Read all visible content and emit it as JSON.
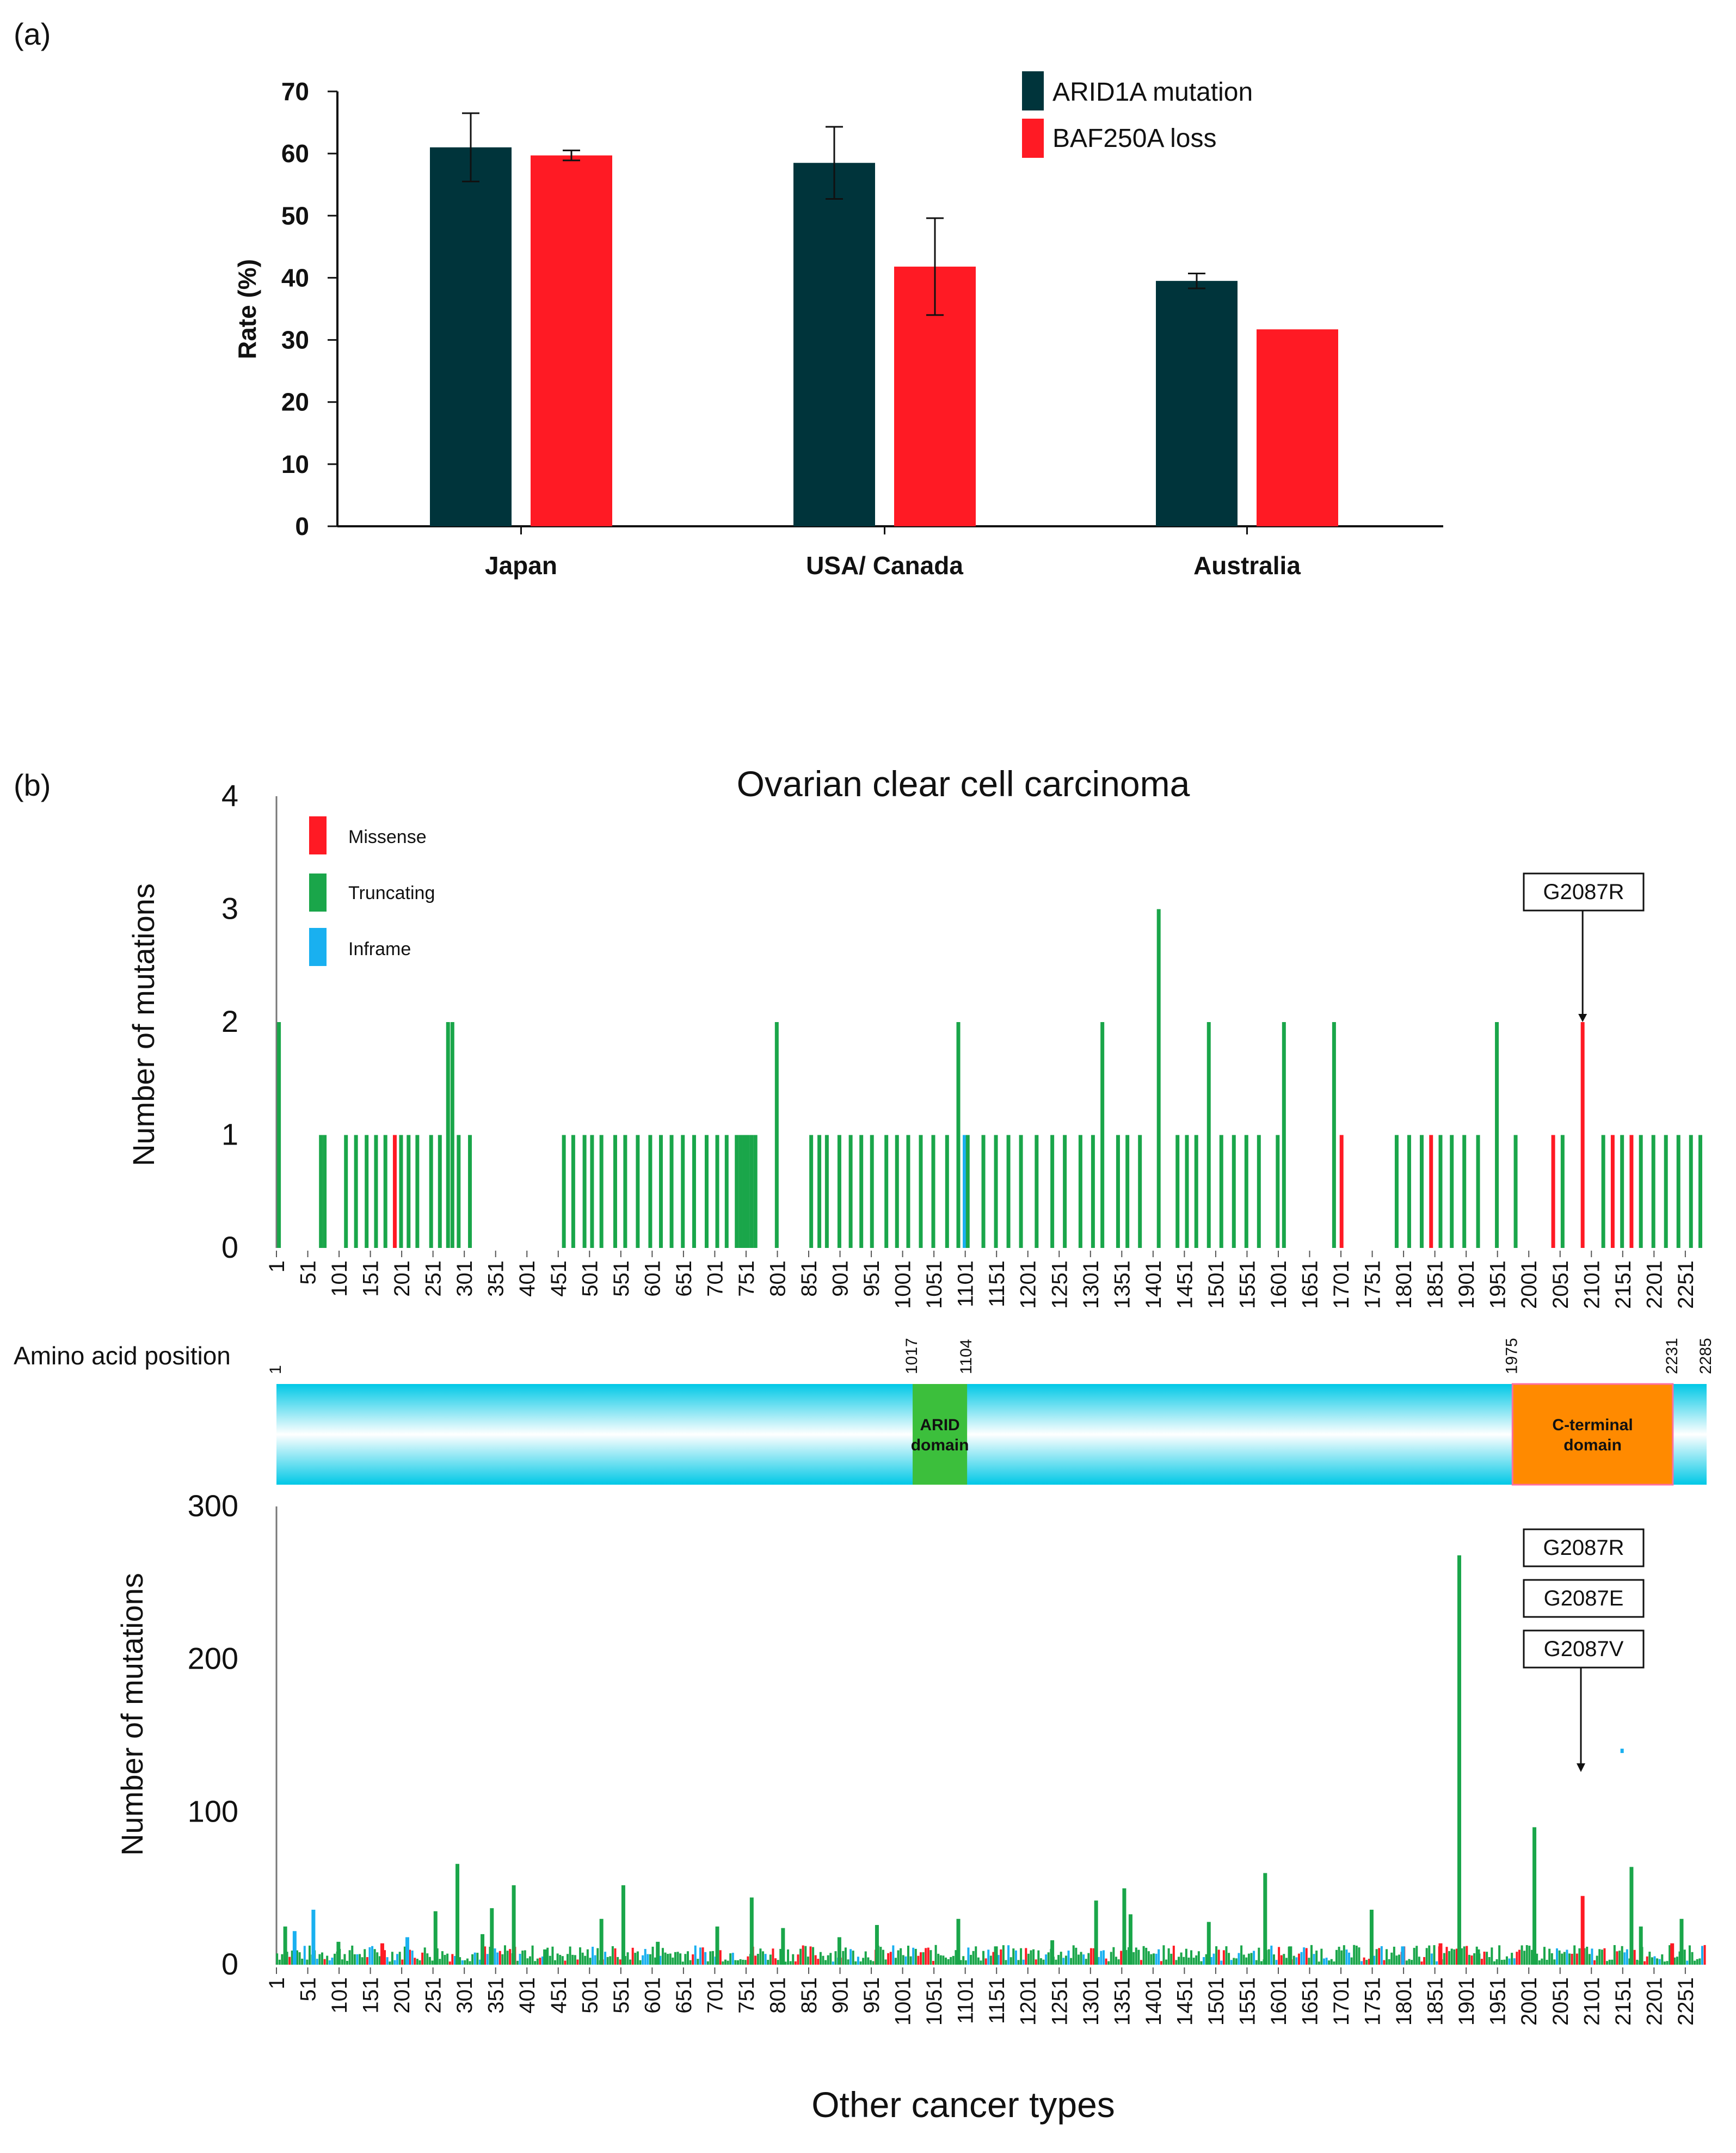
{
  "chart_data": [
    {
      "id": "a",
      "type": "bar",
      "panel_label": "(a)",
      "ylabel": "Rate (%)",
      "ylim": [
        0,
        70
      ],
      "yticks": [
        0,
        10,
        20,
        30,
        40,
        50,
        60,
        70
      ],
      "categories": [
        "Japan",
        "USA/ Canada",
        "Australia"
      ],
      "series": [
        {
          "name": "ARID1A mutation",
          "color": "#00343b",
          "values": [
            61,
            58.5,
            39.5
          ],
          "errors": [
            5.5,
            5.8,
            1.2
          ]
        },
        {
          "name": "BAF250A loss",
          "color": "#ff1a24",
          "values": [
            59.7,
            41.8,
            31.7
          ],
          "errors": [
            0.8,
            7.8,
            null
          ]
        }
      ]
    },
    {
      "id": "b1",
      "type": "bar",
      "panel_label": "(b)",
      "title": "Ovarian clear cell carcinoma",
      "ylabel": "Number of mutations",
      "ylim": [
        0,
        4
      ],
      "yticks": [
        0,
        1,
        2,
        3,
        4
      ],
      "xlim": [
        1,
        2285
      ],
      "xticks": [
        "1",
        "51",
        "101",
        "151",
        "201",
        "251",
        "301",
        "351",
        "401",
        "451",
        "501",
        "551",
        "601",
        "651",
        "701",
        "751",
        "801",
        "851",
        "901",
        "951",
        "1001",
        "1051",
        "1101",
        "1151",
        "1201",
        "1251",
        "1301",
        "1351",
        "1401",
        "1451",
        "1501",
        "1551",
        "1601",
        "1651",
        "1701",
        "1751",
        "1801",
        "1851",
        "1901",
        "1951",
        "2001",
        "2051",
        "2101",
        "2151",
        "2201",
        "2251"
      ],
      "legend": [
        {
          "label": "Missense",
          "color": "#ff1a24"
        },
        {
          "label": "Truncating",
          "color": "#1aa64a"
        },
        {
          "label": "Inframe",
          "color": "#19b0f0"
        }
      ],
      "annotation": {
        "label": "G2087R",
        "position": 2087,
        "value": 2
      },
      "mutations": [
        {
          "pos": 5,
          "count": 2,
          "type": "Truncating"
        },
        {
          "pos": 72,
          "count": 1,
          "type": "Truncating"
        },
        {
          "pos": 78,
          "count": 1,
          "type": "Truncating"
        },
        {
          "pos": 112,
          "count": 1,
          "type": "Truncating"
        },
        {
          "pos": 128,
          "count": 1,
          "type": "Truncating"
        },
        {
          "pos": 145,
          "count": 1,
          "type": "Truncating"
        },
        {
          "pos": 160,
          "count": 1,
          "type": "Truncating"
        },
        {
          "pos": 175,
          "count": 1,
          "type": "Truncating"
        },
        {
          "pos": 190,
          "count": 1,
          "type": "Missense"
        },
        {
          "pos": 200,
          "count": 1,
          "type": "Truncating"
        },
        {
          "pos": 212,
          "count": 1,
          "type": "Truncating"
        },
        {
          "pos": 226,
          "count": 1,
          "type": "Truncating"
        },
        {
          "pos": 248,
          "count": 1,
          "type": "Truncating"
        },
        {
          "pos": 262,
          "count": 1,
          "type": "Truncating"
        },
        {
          "pos": 275,
          "count": 2,
          "type": "Truncating"
        },
        {
          "pos": 282,
          "count": 2,
          "type": "Truncating"
        },
        {
          "pos": 292,
          "count": 1,
          "type": "Truncating"
        },
        {
          "pos": 310,
          "count": 1,
          "type": "Truncating"
        },
        {
          "pos": 460,
          "count": 1,
          "type": "Truncating"
        },
        {
          "pos": 475,
          "count": 1,
          "type": "Truncating"
        },
        {
          "pos": 493,
          "count": 1,
          "type": "Truncating"
        },
        {
          "pos": 505,
          "count": 1,
          "type": "Truncating"
        },
        {
          "pos": 520,
          "count": 1,
          "type": "Truncating"
        },
        {
          "pos": 542,
          "count": 1,
          "type": "Truncating"
        },
        {
          "pos": 558,
          "count": 1,
          "type": "Truncating"
        },
        {
          "pos": 578,
          "count": 1,
          "type": "Truncating"
        },
        {
          "pos": 598,
          "count": 1,
          "type": "Truncating"
        },
        {
          "pos": 615,
          "count": 1,
          "type": "Truncating"
        },
        {
          "pos": 632,
          "count": 1,
          "type": "Truncating"
        },
        {
          "pos": 650,
          "count": 1,
          "type": "Truncating"
        },
        {
          "pos": 668,
          "count": 1,
          "type": "Truncating"
        },
        {
          "pos": 688,
          "count": 1,
          "type": "Truncating"
        },
        {
          "pos": 705,
          "count": 1,
          "type": "Truncating"
        },
        {
          "pos": 720,
          "count": 1,
          "type": "Truncating"
        },
        {
          "pos": 736,
          "count": 1,
          "type": "Truncating"
        },
        {
          "pos": 742,
          "count": 1,
          "type": "Truncating"
        },
        {
          "pos": 748,
          "count": 1,
          "type": "Truncating"
        },
        {
          "pos": 754,
          "count": 1,
          "type": "Truncating"
        },
        {
          "pos": 760,
          "count": 1,
          "type": "Truncating"
        },
        {
          "pos": 766,
          "count": 1,
          "type": "Truncating"
        },
        {
          "pos": 800,
          "count": 2,
          "type": "Truncating"
        },
        {
          "pos": 855,
          "count": 1,
          "type": "Truncating"
        },
        {
          "pos": 868,
          "count": 1,
          "type": "Truncating"
        },
        {
          "pos": 880,
          "count": 1,
          "type": "Truncating"
        },
        {
          "pos": 900,
          "count": 1,
          "type": "Truncating"
        },
        {
          "pos": 918,
          "count": 1,
          "type": "Truncating"
        },
        {
          "pos": 935,
          "count": 1,
          "type": "Truncating"
        },
        {
          "pos": 952,
          "count": 1,
          "type": "Truncating"
        },
        {
          "pos": 975,
          "count": 1,
          "type": "Truncating"
        },
        {
          "pos": 992,
          "count": 1,
          "type": "Truncating"
        },
        {
          "pos": 1010,
          "count": 1,
          "type": "Truncating"
        },
        {
          "pos": 1030,
          "count": 1,
          "type": "Truncating"
        },
        {
          "pos": 1050,
          "count": 1,
          "type": "Truncating"
        },
        {
          "pos": 1072,
          "count": 1,
          "type": "Truncating"
        },
        {
          "pos": 1090,
          "count": 2,
          "type": "Truncating"
        },
        {
          "pos": 1100,
          "count": 1,
          "type": "Inframe"
        },
        {
          "pos": 1105,
          "count": 1,
          "type": "Truncating"
        },
        {
          "pos": 1130,
          "count": 1,
          "type": "Truncating"
        },
        {
          "pos": 1150,
          "count": 1,
          "type": "Truncating"
        },
        {
          "pos": 1170,
          "count": 1,
          "type": "Truncating"
        },
        {
          "pos": 1190,
          "count": 1,
          "type": "Truncating"
        },
        {
          "pos": 1215,
          "count": 1,
          "type": "Truncating"
        },
        {
          "pos": 1240,
          "count": 1,
          "type": "Truncating"
        },
        {
          "pos": 1260,
          "count": 1,
          "type": "Truncating"
        },
        {
          "pos": 1285,
          "count": 1,
          "type": "Truncating"
        },
        {
          "pos": 1305,
          "count": 1,
          "type": "Truncating"
        },
        {
          "pos": 1320,
          "count": 2,
          "type": "Truncating"
        },
        {
          "pos": 1345,
          "count": 1,
          "type": "Truncating"
        },
        {
          "pos": 1360,
          "count": 1,
          "type": "Truncating"
        },
        {
          "pos": 1380,
          "count": 1,
          "type": "Truncating"
        },
        {
          "pos": 1410,
          "count": 3,
          "type": "Truncating"
        },
        {
          "pos": 1440,
          "count": 1,
          "type": "Truncating"
        },
        {
          "pos": 1455,
          "count": 1,
          "type": "Truncating"
        },
        {
          "pos": 1470,
          "count": 1,
          "type": "Truncating"
        },
        {
          "pos": 1490,
          "count": 2,
          "type": "Truncating"
        },
        {
          "pos": 1510,
          "count": 1,
          "type": "Truncating"
        },
        {
          "pos": 1530,
          "count": 1,
          "type": "Truncating"
        },
        {
          "pos": 1550,
          "count": 1,
          "type": "Truncating"
        },
        {
          "pos": 1570,
          "count": 1,
          "type": "Truncating"
        },
        {
          "pos": 1600,
          "count": 1,
          "type": "Truncating"
        },
        {
          "pos": 1610,
          "count": 2,
          "type": "Truncating"
        },
        {
          "pos": 1690,
          "count": 2,
          "type": "Truncating"
        },
        {
          "pos": 1702,
          "count": 1,
          "type": "Missense"
        },
        {
          "pos": 1790,
          "count": 1,
          "type": "Truncating"
        },
        {
          "pos": 1810,
          "count": 1,
          "type": "Truncating"
        },
        {
          "pos": 1830,
          "count": 1,
          "type": "Truncating"
        },
        {
          "pos": 1845,
          "count": 1,
          "type": "Missense"
        },
        {
          "pos": 1860,
          "count": 1,
          "type": "Truncating"
        },
        {
          "pos": 1878,
          "count": 1,
          "type": "Truncating"
        },
        {
          "pos": 1898,
          "count": 1,
          "type": "Truncating"
        },
        {
          "pos": 1920,
          "count": 1,
          "type": "Truncating"
        },
        {
          "pos": 1950,
          "count": 2,
          "type": "Truncating"
        },
        {
          "pos": 1980,
          "count": 1,
          "type": "Truncating"
        },
        {
          "pos": 2040,
          "count": 1,
          "type": "Missense"
        },
        {
          "pos": 2055,
          "count": 1,
          "type": "Truncating"
        },
        {
          "pos": 2087,
          "count": 2,
          "type": "Missense"
        },
        {
          "pos": 2120,
          "count": 1,
          "type": "Truncating"
        },
        {
          "pos": 2135,
          "count": 1,
          "type": "Missense"
        },
        {
          "pos": 2150,
          "count": 1,
          "type": "Truncating"
        },
        {
          "pos": 2165,
          "count": 1,
          "type": "Missense"
        },
        {
          "pos": 2180,
          "count": 1,
          "type": "Truncating"
        },
        {
          "pos": 2200,
          "count": 1,
          "type": "Truncating"
        },
        {
          "pos": 2220,
          "count": 1,
          "type": "Truncating"
        },
        {
          "pos": 2240,
          "count": 1,
          "type": "Truncating"
        },
        {
          "pos": 2260,
          "count": 1,
          "type": "Truncating"
        },
        {
          "pos": 2275,
          "count": 1,
          "type": "Truncating"
        }
      ]
    },
    {
      "id": "b2",
      "type": "bar",
      "title": "Other cancer types",
      "ylabel": "Number of mutations",
      "ylim": [
        0,
        300
      ],
      "yticks": [
        0,
        100,
        200,
        300
      ],
      "xlim": [
        1,
        2285
      ],
      "xticks": [
        "1",
        "51",
        "101",
        "151",
        "201",
        "251",
        "301",
        "351",
        "401",
        "451",
        "501",
        "551",
        "601",
        "651",
        "701",
        "751",
        "801",
        "851",
        "901",
        "951",
        "1001",
        "1051",
        "1101",
        "1151",
        "1201",
        "1251",
        "1301",
        "1351",
        "1401",
        "1451",
        "1501",
        "1551",
        "1601",
        "1651",
        "1701",
        "1751",
        "1801",
        "1851",
        "1901",
        "1951",
        "2001",
        "2051",
        "2101",
        "2151",
        "2201",
        "2251"
      ],
      "annotations": [
        "G2087R",
        "G2087E",
        "G2087V"
      ],
      "annotation_position": 2087,
      "peaks": [
        {
          "pos": 15,
          "count": 25,
          "type": "Truncating"
        },
        {
          "pos": 30,
          "count": 22,
          "type": "Inframe"
        },
        {
          "pos": 60,
          "count": 36,
          "type": "Inframe"
        },
        {
          "pos": 100,
          "count": 15,
          "type": "Truncating"
        },
        {
          "pos": 170,
          "count": 14,
          "type": "Missense"
        },
        {
          "pos": 210,
          "count": 18,
          "type": "Inframe"
        },
        {
          "pos": 255,
          "count": 35,
          "type": "Truncating"
        },
        {
          "pos": 290,
          "count": 66,
          "type": "Truncating"
        },
        {
          "pos": 330,
          "count": 20,
          "type": "Truncating"
        },
        {
          "pos": 345,
          "count": 37,
          "type": "Truncating"
        },
        {
          "pos": 380,
          "count": 52,
          "type": "Truncating"
        },
        {
          "pos": 430,
          "count": 10,
          "type": "Truncating"
        },
        {
          "pos": 520,
          "count": 30,
          "type": "Truncating"
        },
        {
          "pos": 555,
          "count": 52,
          "type": "Truncating"
        },
        {
          "pos": 610,
          "count": 15,
          "type": "Truncating"
        },
        {
          "pos": 705,
          "count": 25,
          "type": "Truncating"
        },
        {
          "pos": 760,
          "count": 44,
          "type": "Truncating"
        },
        {
          "pos": 810,
          "count": 24,
          "type": "Truncating"
        },
        {
          "pos": 900,
          "count": 18,
          "type": "Truncating"
        },
        {
          "pos": 960,
          "count": 26,
          "type": "Truncating"
        },
        {
          "pos": 1090,
          "count": 30,
          "type": "Truncating"
        },
        {
          "pos": 1150,
          "count": 12,
          "type": "Truncating"
        },
        {
          "pos": 1240,
          "count": 16,
          "type": "Truncating"
        },
        {
          "pos": 1310,
          "count": 42,
          "type": "Truncating"
        },
        {
          "pos": 1355,
          "count": 50,
          "type": "Truncating"
        },
        {
          "pos": 1365,
          "count": 33,
          "type": "Truncating"
        },
        {
          "pos": 1490,
          "count": 28,
          "type": "Truncating"
        },
        {
          "pos": 1580,
          "count": 60,
          "type": "Truncating"
        },
        {
          "pos": 1620,
          "count": 12,
          "type": "Truncating"
        },
        {
          "pos": 1750,
          "count": 36,
          "type": "Truncating"
        },
        {
          "pos": 1800,
          "count": 12,
          "type": "Inframe"
        },
        {
          "pos": 1860,
          "count": 14,
          "type": "Missense"
        },
        {
          "pos": 1890,
          "count": 268,
          "type": "Truncating"
        },
        {
          "pos": 1920,
          "count": 10,
          "type": "Truncating"
        },
        {
          "pos": 2010,
          "count": 90,
          "type": "Truncating"
        },
        {
          "pos": 2087,
          "count": 45,
          "type": "Missense"
        },
        {
          "pos": 2150,
          "count": 140,
          "type": "Inframe"
        },
        {
          "pos": 2165,
          "count": 64,
          "type": "Truncating"
        },
        {
          "pos": 2180,
          "count": 25,
          "type": "Truncating"
        },
        {
          "pos": 2230,
          "count": 14,
          "type": "Missense"
        },
        {
          "pos": 2245,
          "count": 30,
          "type": "Truncating"
        }
      ]
    }
  ],
  "protein": {
    "label": "Amino acid position",
    "start": 1,
    "end": 2285,
    "tick_labels": [
      "1",
      "1017",
      "1104",
      "1975",
      "2231",
      "2285"
    ],
    "domains": [
      {
        "name_line1": "ARID",
        "name_line2": "domain",
        "start": 1017,
        "end": 1104,
        "color": "#3cbf3c"
      },
      {
        "name_line1": "C-terminal",
        "name_line2": "domain",
        "start": 1975,
        "end": 2231,
        "color": "#ff8a00"
      }
    ]
  }
}
